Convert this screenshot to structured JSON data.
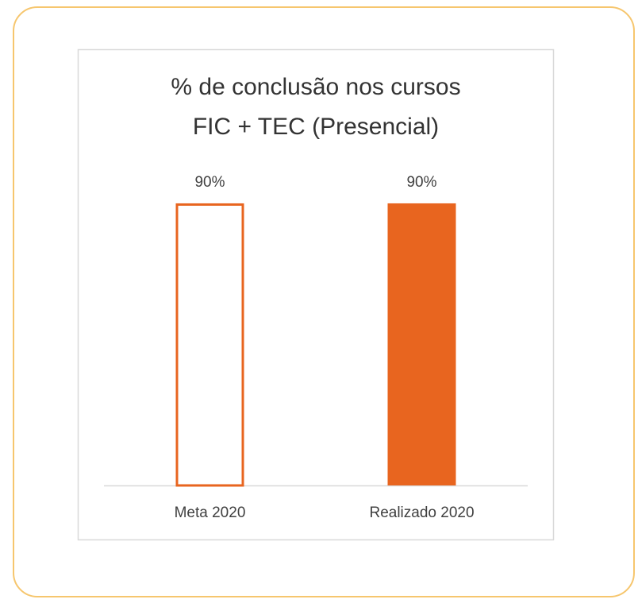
{
  "chart_data": {
    "type": "bar",
    "title": [
      "% de conclusão nos cursos",
      "FIC + TEC (Presencial)"
    ],
    "categories": [
      "Meta 2020",
      "Realizado 2020"
    ],
    "values": [
      90,
      90
    ],
    "value_labels": [
      "90%",
      "90%"
    ],
    "color": "#e8651f",
    "bar_styles": [
      "outline",
      "solid"
    ],
    "ylim": [
      0,
      100
    ]
  }
}
